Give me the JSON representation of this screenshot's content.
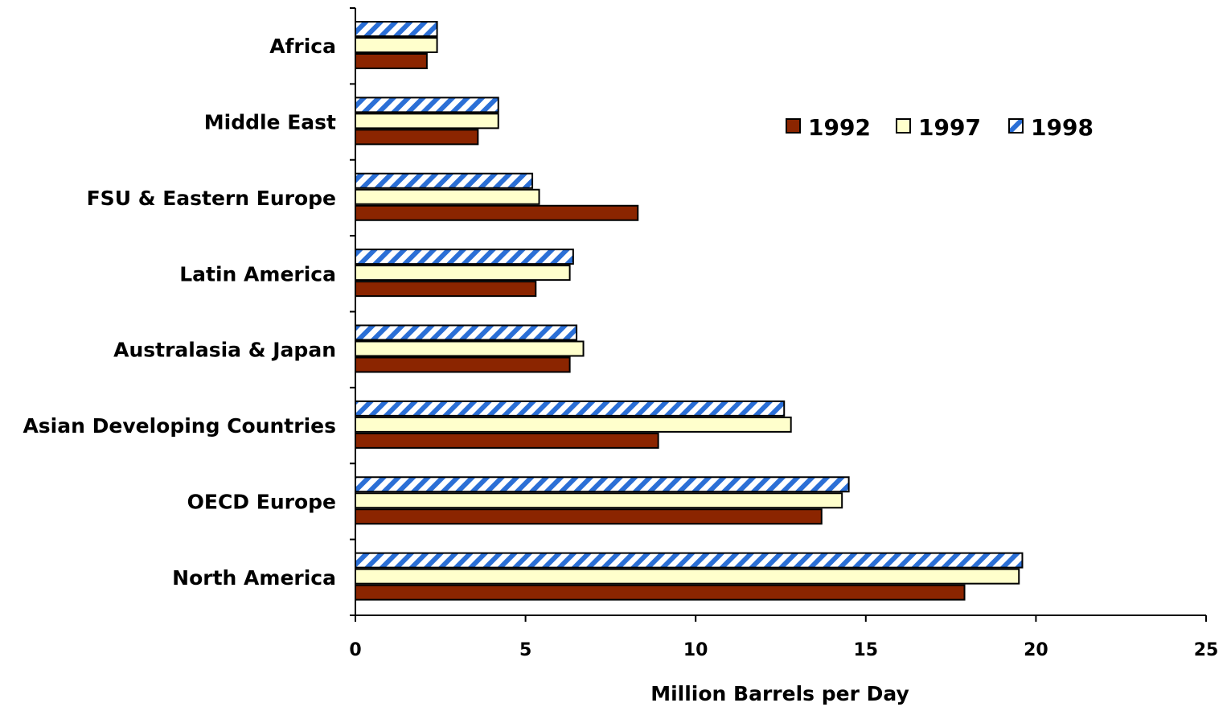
{
  "chart_data": {
    "type": "bar",
    "orientation": "horizontal",
    "categories": [
      "Africa",
      "Middle East",
      "FSU & Eastern Europe",
      "Latin America",
      "Australasia & Japan",
      "Asian Developing Countries",
      "OECD Europe",
      "North America"
    ],
    "series": [
      {
        "name": "1992",
        "color": "#8b2500",
        "pattern": "solid",
        "values": [
          2.1,
          3.6,
          8.3,
          5.3,
          6.3,
          8.9,
          13.7,
          17.9
        ]
      },
      {
        "name": "1997",
        "color": "#ffffcc",
        "pattern": "solid",
        "values": [
          2.4,
          4.2,
          5.4,
          6.3,
          6.7,
          12.8,
          14.3,
          19.5
        ]
      },
      {
        "name": "1998",
        "color": "#2b6fd6",
        "pattern": "diagonal-stripes",
        "values": [
          2.4,
          4.2,
          5.2,
          6.4,
          6.5,
          12.6,
          14.5,
          19.6
        ]
      }
    ],
    "xlabel": "Million Barrels per Day",
    "xlim": [
      0,
      25
    ],
    "xticks": [
      "0",
      "5",
      "10",
      "15",
      "20",
      "25"
    ],
    "grid": false,
    "legend_position": "top-right"
  }
}
